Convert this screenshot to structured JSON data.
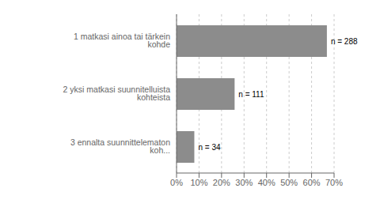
{
  "chart_data": {
    "type": "bar",
    "orientation": "horizontal",
    "categories": [
      "3 ennalta suunnittelematon koh...",
      "2 yksi matkasi suunnitelluista kohteista",
      "1 matkasi ainoa tai tärkein kohde"
    ],
    "values": [
      7.9,
      25.8,
      66.8
    ],
    "annotations": [
      "n = 34",
      "n = 111",
      "n = 288"
    ],
    "color": "#8c8c8c",
    "xlim": [
      0,
      70
    ],
    "xticks": [
      {
        "value": 0,
        "label": "0%"
      },
      {
        "value": 10,
        "label": "10%"
      },
      {
        "value": 20,
        "label": "20%"
      },
      {
        "value": 30,
        "label": "30%"
      },
      {
        "value": 40,
        "label": "40%"
      },
      {
        "value": 50,
        "label": "50%"
      },
      {
        "value": 60,
        "label": "60%"
      },
      {
        "value": 70,
        "label": "70%"
      }
    ],
    "grid": true
  }
}
